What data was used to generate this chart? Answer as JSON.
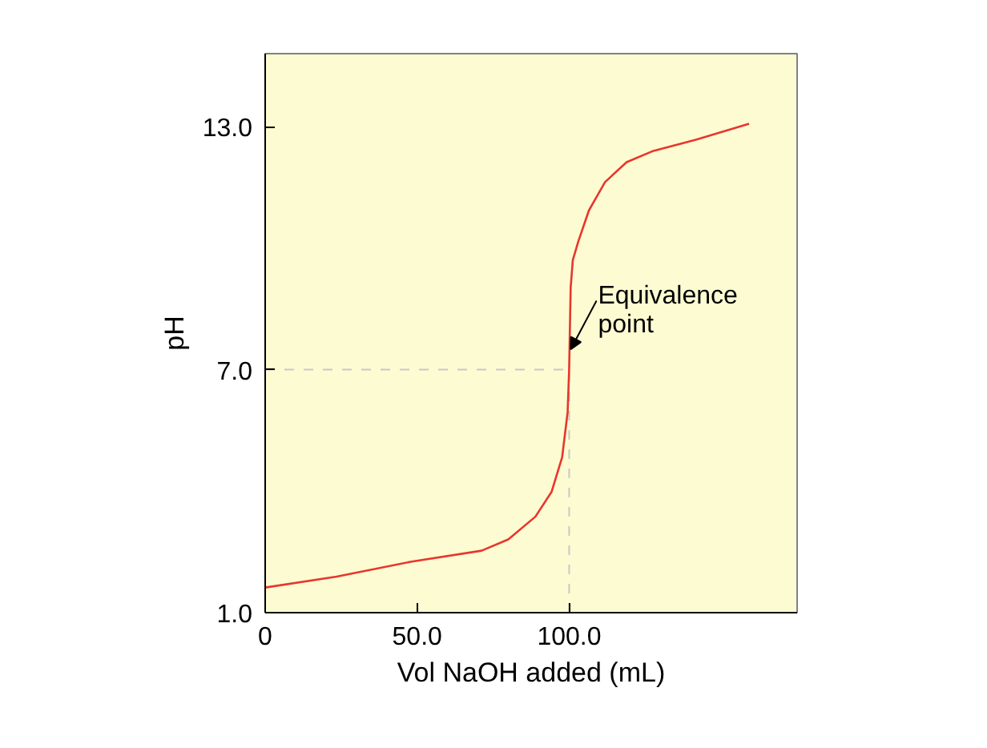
{
  "chart_data": {
    "type": "line",
    "xlabel": "Vol NaOH added (mL)",
    "ylabel": "pH",
    "xlim": [
      0,
      175
    ],
    "ylim": [
      1.0,
      14.8
    ],
    "xticks": [
      {
        "value": 0,
        "label": "0"
      },
      {
        "value": 50,
        "label": "50.0"
      },
      {
        "value": 100,
        "label": "100.0"
      }
    ],
    "yticks": [
      {
        "value": 1,
        "label": "1.0"
      },
      {
        "value": 7,
        "label": "7.0"
      },
      {
        "value": 13,
        "label": "13.0"
      }
    ],
    "series": [
      {
        "color": "#e8362c",
        "x": [
          0,
          23.5,
          48.2,
          71.2,
          80,
          88.9,
          94.2,
          97.7,
          99.5,
          100,
          100.5,
          101.2,
          103,
          106.5,
          111.8,
          118.9,
          127.7,
          141.9,
          159.2
        ],
        "values": [
          1.62,
          1.89,
          2.26,
          2.53,
          2.81,
          3.37,
          3.98,
          4.84,
          5.95,
          7.0,
          9.03,
          9.7,
          10.16,
          10.93,
          11.63,
          12.12,
          12.4,
          12.68,
          13.07
        ]
      }
    ],
    "ref_lines": [
      {
        "axis": "y",
        "value": 7,
        "color": "#c8c8c8",
        "line_style": "dashed"
      },
      {
        "axis": "x",
        "value": 100,
        "color": "#c8c8c8",
        "line_style": "dashed"
      }
    ],
    "annotations": [
      {
        "text": "Equivalence\npoint",
        "x": 100.5,
        "y": 7.5
      }
    ],
    "grid": false,
    "marker": "none",
    "line_style": "solid"
  }
}
